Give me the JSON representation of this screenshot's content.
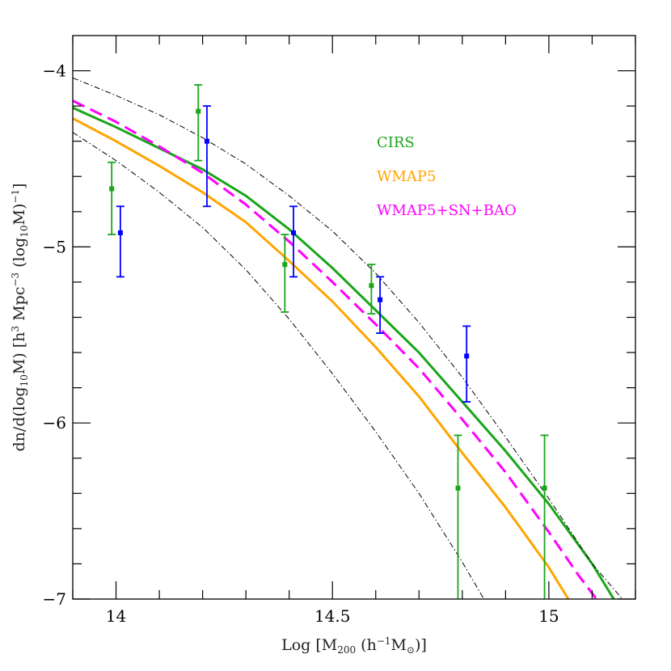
{
  "chart_data": {
    "type": "scatter",
    "xlabel": "Log [M200 (h⁻¹M⊙)]",
    "ylabel": "dn/d(log10M) [h³ Mpc⁻³ (log10M)⁻¹]",
    "xlim": [
      13.9,
      15.2
    ],
    "ylim": [
      -7,
      -3.8
    ],
    "x_ticks": [
      {
        "value": 14,
        "label": "14"
      },
      {
        "value": 14.5,
        "label": "14.5"
      },
      {
        "value": 15,
        "label": "15"
      }
    ],
    "y_ticks": [
      {
        "value": -4,
        "label": "−4"
      },
      {
        "value": -5,
        "label": "−5"
      },
      {
        "value": -6,
        "label": "−6"
      },
      {
        "value": -7,
        "label": "−7"
      }
    ],
    "legend": [
      {
        "label": "CIRS",
        "color": "#1aa51a"
      },
      {
        "label": "WMAP5",
        "color": "#ffa500"
      },
      {
        "label": "WMAP5+SN+BAO",
        "color": "#ff00ff"
      }
    ],
    "points": [
      {
        "color": "#1aa51a",
        "data": [
          {
            "x": 13.99,
            "y": -4.67,
            "ylo": -4.93,
            "yhi": -4.52
          },
          {
            "x": 14.19,
            "y": -4.23,
            "ylo": -4.51,
            "yhi": -4.08
          },
          {
            "x": 14.39,
            "y": -5.1,
            "ylo": -5.37,
            "yhi": -4.93
          },
          {
            "x": 14.59,
            "y": -5.22,
            "ylo": -5.38,
            "yhi": -5.1
          },
          {
            "x": 14.79,
            "y": -6.37,
            "ylo": -7.0,
            "yhi": -6.07
          },
          {
            "x": 14.99,
            "y": -6.37,
            "ylo": -7.0,
            "yhi": -6.07
          }
        ]
      },
      {
        "color": "#0000ff",
        "data": [
          {
            "x": 14.01,
            "y": -4.92,
            "ylo": -5.17,
            "yhi": -4.77
          },
          {
            "x": 14.21,
            "y": -4.4,
            "ylo": -4.77,
            "yhi": -4.2
          },
          {
            "x": 14.41,
            "y": -4.92,
            "ylo": -5.17,
            "yhi": -4.77
          },
          {
            "x": 14.61,
            "y": -5.3,
            "ylo": -5.49,
            "yhi": -5.17
          },
          {
            "x": 14.81,
            "y": -5.62,
            "ylo": -5.88,
            "yhi": -5.45
          }
        ]
      }
    ],
    "curves": [
      {
        "color": "#1aa51a",
        "style": "solid",
        "data": [
          [
            13.9,
            -4.21
          ],
          [
            14.0,
            -4.32
          ],
          [
            14.1,
            -4.44
          ],
          [
            14.2,
            -4.56
          ],
          [
            14.3,
            -4.71
          ],
          [
            14.4,
            -4.9
          ],
          [
            14.5,
            -5.12
          ],
          [
            14.6,
            -5.36
          ],
          [
            14.7,
            -5.6
          ],
          [
            14.8,
            -5.88
          ],
          [
            14.9,
            -6.16
          ],
          [
            15.0,
            -6.46
          ],
          [
            15.1,
            -6.8
          ],
          [
            15.15,
            -7.0
          ]
        ]
      },
      {
        "color": "#ffa500",
        "style": "solid",
        "data": [
          [
            13.9,
            -4.27
          ],
          [
            14.0,
            -4.4
          ],
          [
            14.1,
            -4.54
          ],
          [
            14.2,
            -4.69
          ],
          [
            14.3,
            -4.86
          ],
          [
            14.4,
            -5.08
          ],
          [
            14.5,
            -5.31
          ],
          [
            14.6,
            -5.57
          ],
          [
            14.7,
            -5.85
          ],
          [
            14.8,
            -6.17
          ],
          [
            14.9,
            -6.48
          ],
          [
            15.0,
            -6.82
          ],
          [
            15.045,
            -7.0
          ]
        ]
      },
      {
        "color": "#ff00ff",
        "style": "dashed",
        "data": [
          [
            13.9,
            -4.17
          ],
          [
            14.0,
            -4.29
          ],
          [
            14.1,
            -4.43
          ],
          [
            14.2,
            -4.58
          ],
          [
            14.3,
            -4.76
          ],
          [
            14.4,
            -4.97
          ],
          [
            14.5,
            -5.2
          ],
          [
            14.6,
            -5.44
          ],
          [
            14.7,
            -5.69
          ],
          [
            14.8,
            -5.98
          ],
          [
            14.9,
            -6.28
          ],
          [
            15.0,
            -6.62
          ],
          [
            15.07,
            -6.87
          ],
          [
            15.11,
            -7.0
          ]
        ]
      },
      {
        "color": "#000000",
        "style": "dashdot",
        "data": [
          [
            13.9,
            -4.04
          ],
          [
            14.0,
            -4.14
          ],
          [
            14.1,
            -4.25
          ],
          [
            14.2,
            -4.38
          ],
          [
            14.3,
            -4.53
          ],
          [
            14.4,
            -4.71
          ],
          [
            14.5,
            -4.91
          ],
          [
            14.6,
            -5.15
          ],
          [
            14.7,
            -5.43
          ],
          [
            14.8,
            -5.74
          ],
          [
            14.9,
            -6.08
          ],
          [
            15.0,
            -6.43
          ],
          [
            15.1,
            -6.8
          ],
          [
            15.17,
            -7.0
          ]
        ]
      },
      {
        "color": "#000000",
        "style": "dashdot",
        "data": [
          [
            13.9,
            -4.35
          ],
          [
            14.0,
            -4.51
          ],
          [
            14.1,
            -4.69
          ],
          [
            14.2,
            -4.89
          ],
          [
            14.3,
            -5.13
          ],
          [
            14.4,
            -5.41
          ],
          [
            14.5,
            -5.72
          ],
          [
            14.6,
            -6.05
          ],
          [
            14.7,
            -6.4
          ],
          [
            14.8,
            -6.79
          ],
          [
            14.85,
            -7.0
          ]
        ]
      }
    ]
  }
}
